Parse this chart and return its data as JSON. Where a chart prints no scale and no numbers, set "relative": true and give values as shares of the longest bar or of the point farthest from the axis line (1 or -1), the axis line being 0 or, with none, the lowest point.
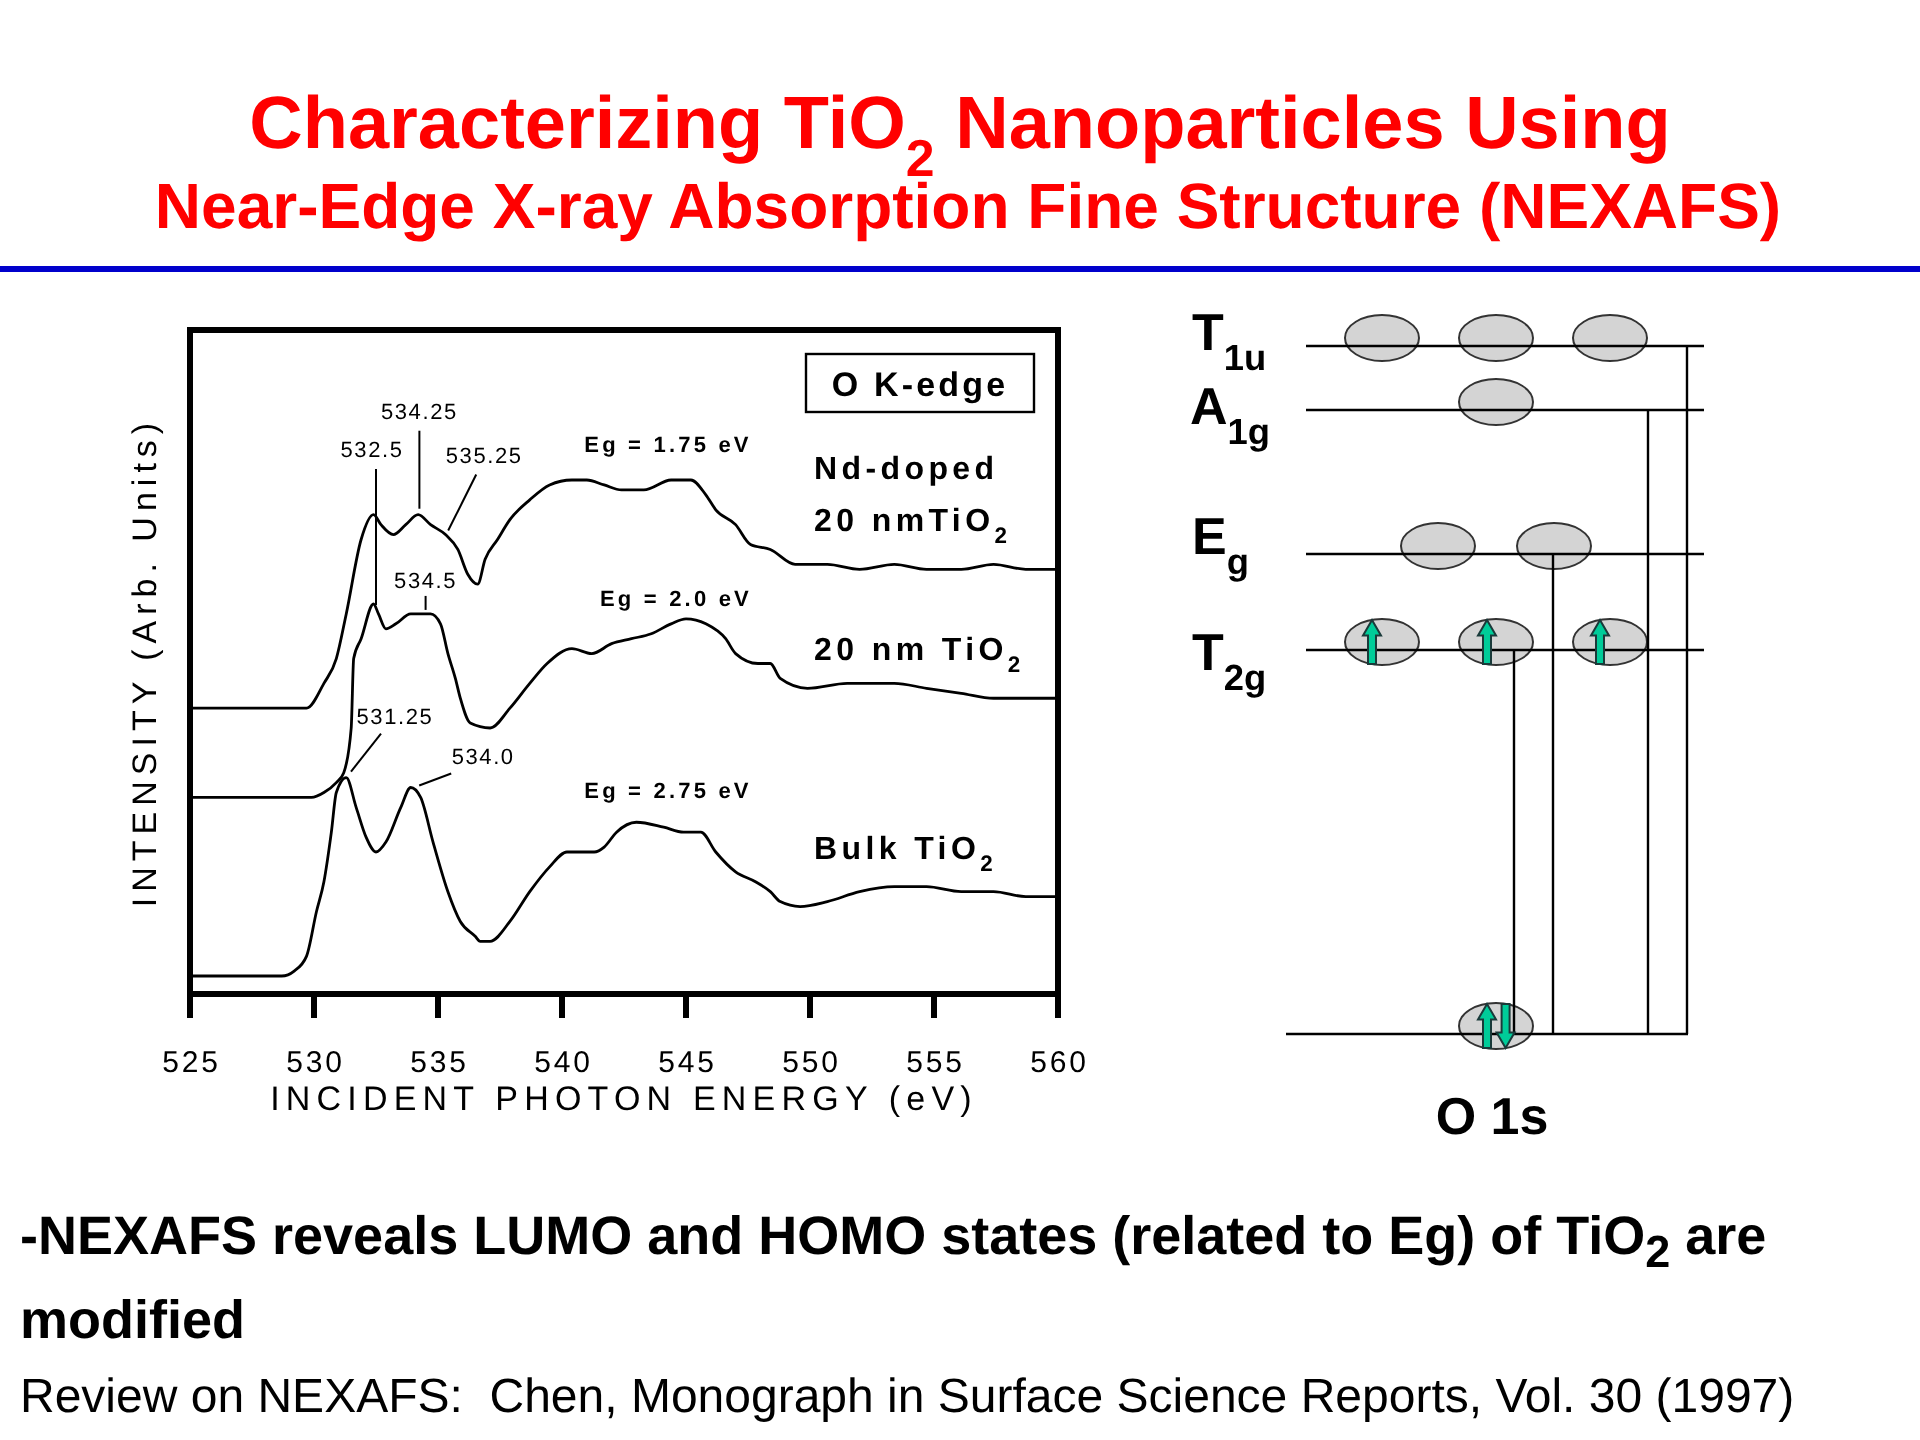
{
  "chart_data": [
    {
      "type": "line",
      "title": "Characterizing TiO$_{2}$ Nanoparticles Using",
      "subtitle": "Near-Edge X-ray Absorption Fine Structure (NEXAFS)",
      "xlabel": "INCIDENT PHOTON ENERGY (eV)",
      "ylabel": "INTENSITY (Arb. Units)",
      "relative": true,
      "xlim": [
        525,
        560
      ],
      "xticks": [
        525,
        530,
        535,
        540,
        545,
        550,
        555,
        560
      ],
      "tick_labels": "x",
      "series": [
        {
          "name": "Nd-doped 20 nmTiO$_{2}$",
          "color": "#000000",
          "x": [
            525,
            529.7,
            530.4,
            530.9,
            531.3,
            531.9,
            532.4,
            532.7,
            533.2,
            533.7,
            534.2,
            534.7,
            535.3,
            535.8,
            536.2,
            536.6,
            536.9,
            537.4,
            537.9,
            538.7,
            539.5,
            540.4,
            541,
            541.7,
            542.4,
            543.3,
            544.4,
            545.2,
            545.8,
            546.2,
            547,
            547.6,
            548.4,
            549.4,
            550.7,
            552,
            553.4,
            554.7,
            556.1,
            557.4,
            558.7,
            560
          ],
          "values": [
            0.54,
            0.54,
            0.59,
            0.64,
            0.73,
            0.88,
            0.93,
            0.91,
            0.89,
            0.91,
            0.93,
            0.91,
            0.89,
            0.86,
            0.81,
            0.79,
            0.84,
            0.88,
            0.92,
            0.96,
            0.99,
            1.0,
            1.0,
            0.99,
            0.98,
            0.98,
            1.0,
            1.0,
            0.97,
            0.94,
            0.91,
            0.87,
            0.86,
            0.83,
            0.83,
            0.82,
            0.83,
            0.82,
            0.82,
            0.83,
            0.82,
            0.82
          ]
        },
        {
          "name": "20 nm TiO$_{2}$",
          "color": "#000000",
          "x": [
            525,
            529.9,
            530.4,
            530.9,
            531.2,
            531.5,
            531.6,
            531.9,
            532.4,
            532.6,
            532.9,
            533.3,
            533.9,
            534.7,
            535.1,
            535.4,
            535.7,
            535.9,
            536.3,
            537.1,
            537.9,
            538.7,
            539.4,
            540.4,
            541.2,
            542,
            542.8,
            543.6,
            544.4,
            545,
            545.8,
            546.6,
            547,
            547.9,
            548.4,
            548.8,
            549.9,
            551.5,
            553.4,
            554.7,
            556.1,
            557.4,
            558.7,
            560
          ],
          "values": [
            0.36,
            0.36,
            0.37,
            0.39,
            0.41,
            0.5,
            0.64,
            0.68,
            0.75,
            0.73,
            0.7,
            0.71,
            0.73,
            0.73,
            0.71,
            0.65,
            0.6,
            0.56,
            0.51,
            0.5,
            0.54,
            0.59,
            0.63,
            0.66,
            0.65,
            0.67,
            0.68,
            0.69,
            0.71,
            0.72,
            0.71,
            0.68,
            0.65,
            0.63,
            0.63,
            0.6,
            0.58,
            0.59,
            0.59,
            0.58,
            0.57,
            0.56,
            0.56,
            0.56
          ]
        },
        {
          "name": "Bulk TiO$_{2}$",
          "color": "#000000",
          "x": [
            525,
            528.7,
            529.2,
            529.7,
            530.1,
            530.4,
            530.7,
            530.9,
            531.3,
            531.7,
            532.1,
            532.5,
            532.9,
            533.5,
            533.9,
            534.3,
            534.8,
            535.4,
            535.9,
            536.5,
            536.7,
            537.1,
            537.9,
            538.7,
            539.5,
            540.2,
            541.3,
            541.7,
            542.2,
            543,
            544.1,
            544.9,
            545.6,
            546.2,
            547,
            547.8,
            548.4,
            548.8,
            549.6,
            550.7,
            552,
            553.4,
            554.7,
            556.1,
            557.4,
            558.7,
            560
          ],
          "values": [
            0,
            0,
            0.01,
            0.04,
            0.13,
            0.19,
            0.29,
            0.37,
            0.4,
            0.34,
            0.28,
            0.25,
            0.27,
            0.34,
            0.38,
            0.36,
            0.27,
            0.17,
            0.11,
            0.08,
            0.07,
            0.07,
            0.11,
            0.17,
            0.22,
            0.25,
            0.25,
            0.26,
            0.29,
            0.31,
            0.3,
            0.29,
            0.29,
            0.25,
            0.21,
            0.19,
            0.17,
            0.15,
            0.14,
            0.15,
            0.17,
            0.18,
            0.18,
            0.17,
            0.17,
            0.16,
            0.16
          ]
        }
      ],
      "annotations": [
        {
          "text": "532.5",
          "x": 532.5,
          "y": 0.74
        },
        {
          "text": "534.25",
          "x": 534.25,
          "y": 0.93
        },
        {
          "text": "535.25",
          "x": 535.25,
          "y": 0.89
        },
        {
          "text": "534.5",
          "x": 534.5,
          "y": 0.73
        },
        {
          "text": "531.25",
          "x": 531.25,
          "y": 0.4
        },
        {
          "text": "534.0",
          "x": 534.0,
          "y": 0.38
        },
        "O K-edge",
        "Eg = 1.75 eV",
        "Eg = 2.0 eV",
        "Eg = 2.75 eV",
        "-NEXAFS reveals LUMO and HOMO states (related to Eg) of TiO$_{2}$ are modified",
        "Review on NEXAFS:  Chen, Monograph in Surface Science Reports, Vol. 30 (1997)"
      ]
    },
    {
      "type": "other",
      "annotations": [
        "T$_{1u}$",
        "A$_{1g}$",
        "E$_{g}$",
        "T$_{2g}$",
        "O 1s"
      ]
    }
  ]
}
